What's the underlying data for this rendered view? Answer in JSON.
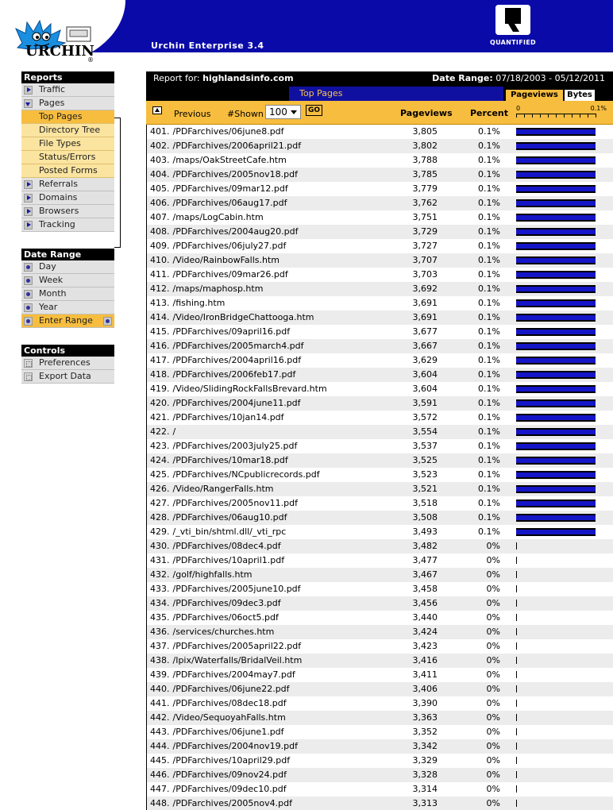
{
  "header": {
    "logo_text": "URCHIN",
    "app_title": "Urchin Enterprise 3.4",
    "quantified_text": "QUANTIFIED"
  },
  "sidebar": {
    "reports": {
      "heading": "Reports",
      "items": [
        {
          "label": "Traffic",
          "icon": "triangle-right-icon"
        },
        {
          "label": "Pages",
          "icon": "triangle-down-icon",
          "expanded": true
        },
        {
          "label": "Referrals",
          "icon": "triangle-right-icon"
        },
        {
          "label": "Domains",
          "icon": "triangle-right-icon"
        },
        {
          "label": "Browsers",
          "icon": "triangle-right-icon"
        },
        {
          "label": "Tracking",
          "icon": "triangle-right-icon"
        }
      ],
      "pages_subitems": [
        {
          "label": "Top Pages",
          "active": true
        },
        {
          "label": "Directory Tree"
        },
        {
          "label": "File Types"
        },
        {
          "label": "Status/Errors"
        },
        {
          "label": "Posted Forms"
        }
      ]
    },
    "date_range": {
      "heading": "Date Range",
      "items": [
        {
          "label": "Day"
        },
        {
          "label": "Week"
        },
        {
          "label": "Month"
        },
        {
          "label": "Year"
        },
        {
          "label": "Enter Range",
          "active": true
        }
      ]
    },
    "controls": {
      "heading": "Controls",
      "items": [
        {
          "label": "Preferences"
        },
        {
          "label": "Export Data"
        }
      ]
    }
  },
  "report": {
    "report_for_label": "Report for:",
    "site": "highlandsinfo.com",
    "date_range_label": "Date Range:",
    "date_range": "07/18/2003 - 05/12/2011",
    "title": "Top Pages",
    "tabs": [
      "Pageviews",
      "Bytes"
    ],
    "controls": {
      "previous": "Previous",
      "shown_label": "#Shown",
      "shown_value": "100",
      "go": "GO"
    },
    "columns": {
      "pageviews": "Pageviews",
      "percent": "Percent"
    },
    "scale": {
      "min": "0",
      "max": "0.1%"
    },
    "colors": {
      "bar": "#1515c8",
      "highlight": "#f7bd3e",
      "header": "#0a0aa8"
    }
  },
  "rows": [
    {
      "n": "401.",
      "page": "/PDFarchives/06june8.pdf",
      "pv": "3,805",
      "pct": "0.1%"
    },
    {
      "n": "402.",
      "page": "/PDFarchives/2006april21.pdf",
      "pv": "3,802",
      "pct": "0.1%"
    },
    {
      "n": "403.",
      "page": "/maps/OakStreetCafe.htm",
      "pv": "3,788",
      "pct": "0.1%"
    },
    {
      "n": "404.",
      "page": "/PDFarchives/2005nov18.pdf",
      "pv": "3,785",
      "pct": "0.1%"
    },
    {
      "n": "405.",
      "page": "/PDFarchives/09mar12.pdf",
      "pv": "3,779",
      "pct": "0.1%"
    },
    {
      "n": "406.",
      "page": "/PDFarchives/06aug17.pdf",
      "pv": "3,762",
      "pct": "0.1%"
    },
    {
      "n": "407.",
      "page": "/maps/LogCabin.htm",
      "pv": "3,751",
      "pct": "0.1%"
    },
    {
      "n": "408.",
      "page": "/PDFarchives/2004aug20.pdf",
      "pv": "3,729",
      "pct": "0.1%"
    },
    {
      "n": "409.",
      "page": "/PDFarchives/06july27.pdf",
      "pv": "3,727",
      "pct": "0.1%"
    },
    {
      "n": "410.",
      "page": "/Video/RainbowFalls.htm",
      "pv": "3,707",
      "pct": "0.1%"
    },
    {
      "n": "411.",
      "page": "/PDFarchives/09mar26.pdf",
      "pv": "3,703",
      "pct": "0.1%"
    },
    {
      "n": "412.",
      "page": "/maps/maphosp.htm",
      "pv": "3,692",
      "pct": "0.1%"
    },
    {
      "n": "413.",
      "page": "/fishing.htm",
      "pv": "3,691",
      "pct": "0.1%"
    },
    {
      "n": "414.",
      "page": "/Video/IronBridgeChattooga.htm",
      "pv": "3,691",
      "pct": "0.1%"
    },
    {
      "n": "415.",
      "page": "/PDFarchives/09april16.pdf",
      "pv": "3,677",
      "pct": "0.1%"
    },
    {
      "n": "416.",
      "page": "/PDFarchives/2005march4.pdf",
      "pv": "3,667",
      "pct": "0.1%"
    },
    {
      "n": "417.",
      "page": "/PDFarchives/2004april16.pdf",
      "pv": "3,629",
      "pct": "0.1%"
    },
    {
      "n": "418.",
      "page": "/PDFarchives/2006feb17.pdf",
      "pv": "3,604",
      "pct": "0.1%"
    },
    {
      "n": "419.",
      "page": "/Video/SlidingRockFallsBrevard.htm",
      "pv": "3,604",
      "pct": "0.1%"
    },
    {
      "n": "420.",
      "page": "/PDFarchives/2004june11.pdf",
      "pv": "3,591",
      "pct": "0.1%"
    },
    {
      "n": "421.",
      "page": "/PDFarchives/10jan14.pdf",
      "pv": "3,572",
      "pct": "0.1%"
    },
    {
      "n": "422.",
      "page": "/",
      "pv": "3,554",
      "pct": "0.1%"
    },
    {
      "n": "423.",
      "page": "/PDFarchives/2003july25.pdf",
      "pv": "3,537",
      "pct": "0.1%"
    },
    {
      "n": "424.",
      "page": "/PDFarchives/10mar18.pdf",
      "pv": "3,525",
      "pct": "0.1%"
    },
    {
      "n": "425.",
      "page": "/PDFarchives/NCpublicrecords.pdf",
      "pv": "3,523",
      "pct": "0.1%"
    },
    {
      "n": "426.",
      "page": "/Video/RangerFalls.htm",
      "pv": "3,521",
      "pct": "0.1%"
    },
    {
      "n": "427.",
      "page": "/PDFarchives/2005nov11.pdf",
      "pv": "3,518",
      "pct": "0.1%"
    },
    {
      "n": "428.",
      "page": "/PDFarchives/06aug10.pdf",
      "pv": "3,508",
      "pct": "0.1%"
    },
    {
      "n": "429.",
      "page": "/_vti_bin/shtml.dll/_vti_rpc",
      "pv": "3,493",
      "pct": "0.1%"
    },
    {
      "n": "430.",
      "page": "/PDFarchives/08dec4.pdf",
      "pv": "3,482",
      "pct": "0%"
    },
    {
      "n": "431.",
      "page": "/PDFarchives/10april1.pdf",
      "pv": "3,477",
      "pct": "0%"
    },
    {
      "n": "432.",
      "page": "/golf/highfalls.htm",
      "pv": "3,467",
      "pct": "0%"
    },
    {
      "n": "433.",
      "page": "/PDFarchives/2005june10.pdf",
      "pv": "3,458",
      "pct": "0%"
    },
    {
      "n": "434.",
      "page": "/PDFarchives/09dec3.pdf",
      "pv": "3,456",
      "pct": "0%"
    },
    {
      "n": "435.",
      "page": "/PDFarchives/06oct5.pdf",
      "pv": "3,440",
      "pct": "0%"
    },
    {
      "n": "436.",
      "page": "/services/churches.htm",
      "pv": "3,424",
      "pct": "0%"
    },
    {
      "n": "437.",
      "page": "/PDFarchives/2005april22.pdf",
      "pv": "3,423",
      "pct": "0%"
    },
    {
      "n": "438.",
      "page": "/Ipix/Waterfalls/BridalVeil.htm",
      "pv": "3,416",
      "pct": "0%"
    },
    {
      "n": "439.",
      "page": "/PDFarchives/2004may7.pdf",
      "pv": "3,411",
      "pct": "0%"
    },
    {
      "n": "440.",
      "page": "/PDFarchives/06june22.pdf",
      "pv": "3,406",
      "pct": "0%"
    },
    {
      "n": "441.",
      "page": "/PDFarchives/08dec18.pdf",
      "pv": "3,390",
      "pct": "0%"
    },
    {
      "n": "442.",
      "page": "/Video/SequoyahFalls.htm",
      "pv": "3,363",
      "pct": "0%"
    },
    {
      "n": "443.",
      "page": "/PDFarchives/06june1.pdf",
      "pv": "3,352",
      "pct": "0%"
    },
    {
      "n": "444.",
      "page": "/PDFarchives/2004nov19.pdf",
      "pv": "3,342",
      "pct": "0%"
    },
    {
      "n": "445.",
      "page": "/PDFarchives/10april29.pdf",
      "pv": "3,329",
      "pct": "0%"
    },
    {
      "n": "446.",
      "page": "/PDFarchives/09nov24.pdf",
      "pv": "3,328",
      "pct": "0%"
    },
    {
      "n": "447.",
      "page": "/PDFarchives/09dec10.pdf",
      "pv": "3,314",
      "pct": "0%"
    },
    {
      "n": "448.",
      "page": "/PDFarchives/2005nov4.pdf",
      "pv": "3,313",
      "pct": "0%"
    }
  ]
}
